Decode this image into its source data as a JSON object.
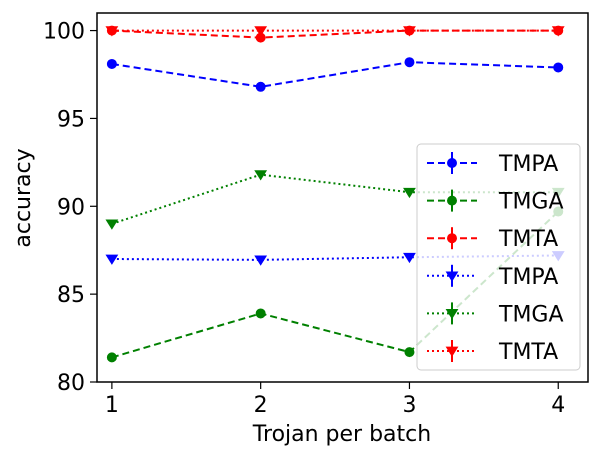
{
  "chart_data": {
    "type": "line",
    "title": "",
    "xlabel": "Trojan per batch",
    "ylabel": "accuracy",
    "x": [
      1,
      2,
      3,
      4
    ],
    "xticks": [
      "1",
      "2",
      "3",
      "4"
    ],
    "yticks": [
      "80",
      "85",
      "90",
      "95",
      "100"
    ],
    "ylim": [
      80,
      101
    ],
    "xlim": [
      0.9,
      4.2
    ],
    "grid": false,
    "legend_location": "lower-right",
    "series": [
      {
        "name": "TMPA",
        "values": [
          98.1,
          96.8,
          98.2,
          97.9
        ],
        "color": "#0000ff",
        "linestyle": "dashed",
        "marker": "circle"
      },
      {
        "name": "TMGA",
        "values": [
          81.4,
          83.9,
          81.7,
          89.7
        ],
        "color": "#008000",
        "linestyle": "dashed",
        "marker": "circle"
      },
      {
        "name": "TMTA",
        "values": [
          100.0,
          99.6,
          100.0,
          100.0
        ],
        "color": "#ff0000",
        "linestyle": "dashed",
        "marker": "circle"
      },
      {
        "name": "TMPA",
        "values": [
          87.0,
          86.95,
          87.1,
          87.2
        ],
        "color": "#0000ff",
        "linestyle": "dotted",
        "marker": "triangle-down"
      },
      {
        "name": "TMGA",
        "values": [
          89.0,
          91.8,
          90.8,
          90.8
        ],
        "color": "#008000",
        "linestyle": "dotted",
        "marker": "triangle-down"
      },
      {
        "name": "TMTA",
        "values": [
          100.0,
          100.0,
          100.0,
          100.0
        ],
        "color": "#ff0000",
        "linestyle": "dotted",
        "marker": "triangle-down"
      }
    ]
  }
}
